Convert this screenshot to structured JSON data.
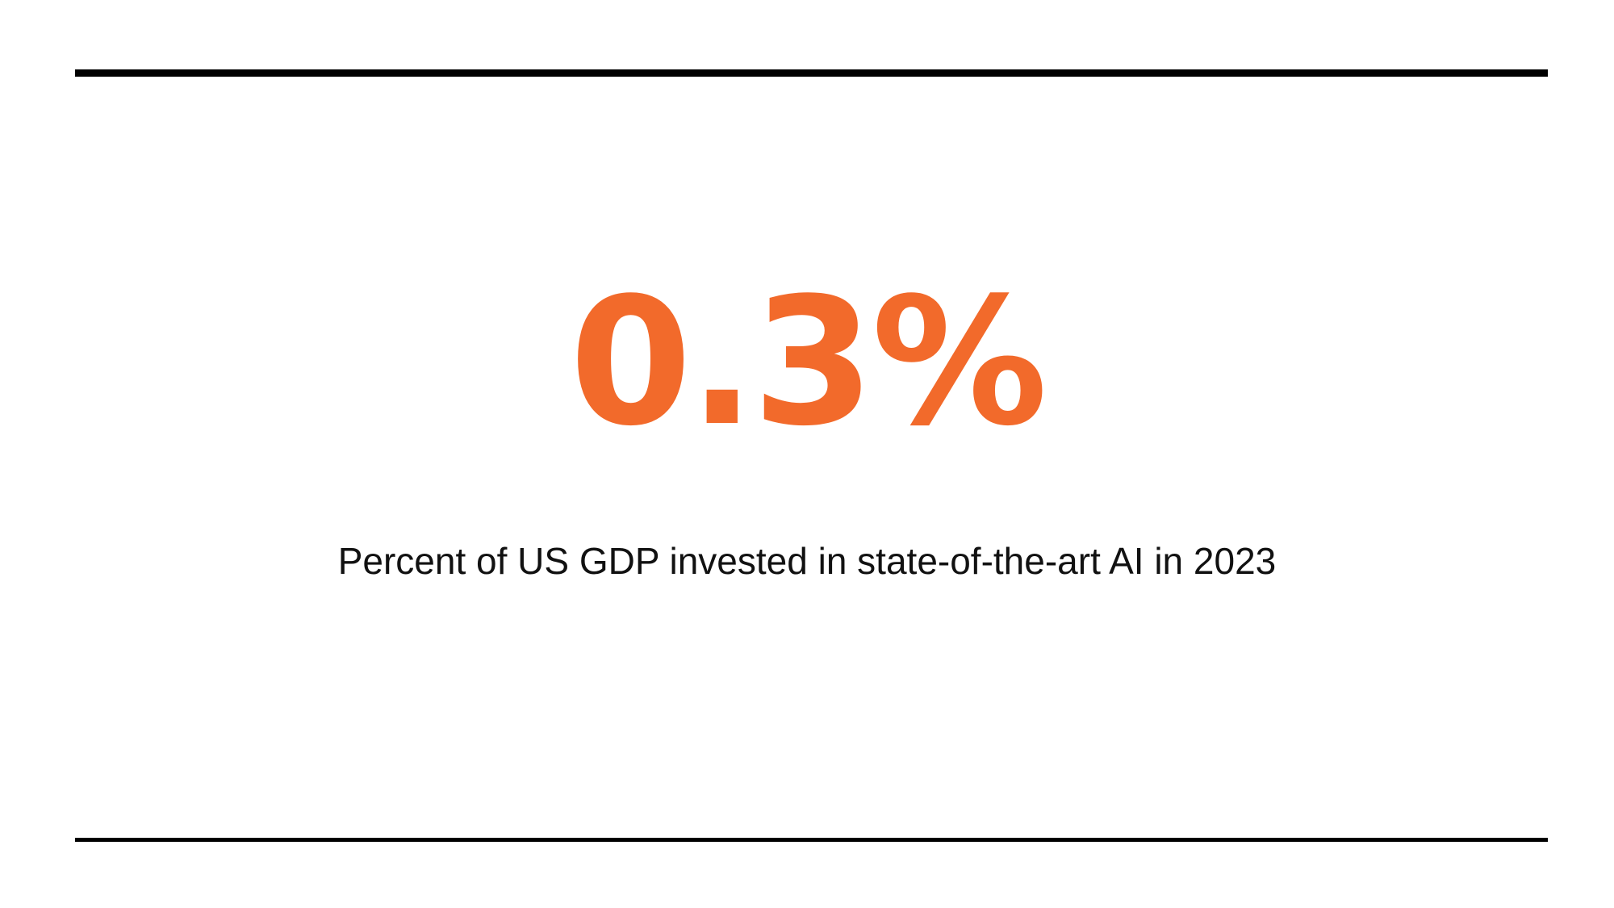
{
  "slide": {
    "stat_value": "0.3%",
    "caption": "Percent of US GDP invested in state-of-the-art AI in 2023"
  },
  "colors": {
    "accent": "#F26A2B",
    "rule": "#000000",
    "text": "#111111",
    "background": "#FFFFFF"
  }
}
